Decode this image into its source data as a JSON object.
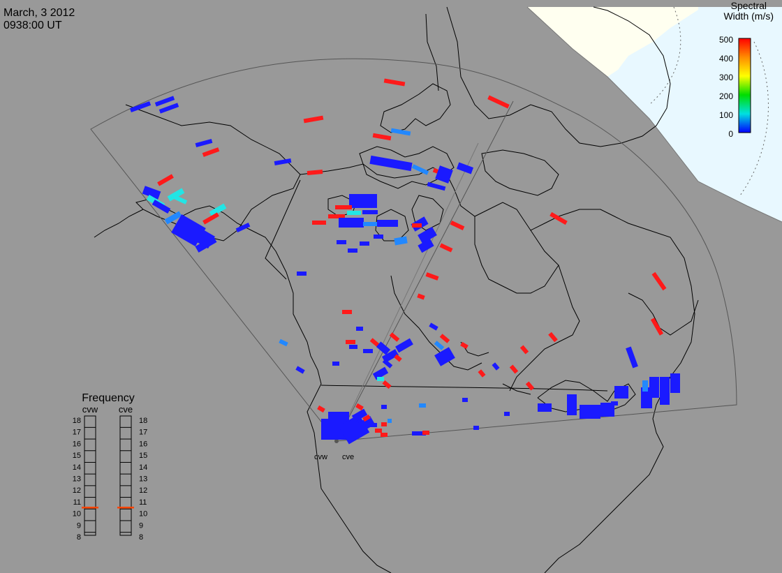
{
  "header": {
    "date": "March, 3 2012",
    "time": "0938:00 UT"
  },
  "colorbar": {
    "title_line1": "Spectral",
    "title_line2": "Width (m/s)",
    "ticks": [
      "500",
      "400",
      "300",
      "200",
      "100",
      "0"
    ],
    "colors": [
      "#ff0000",
      "#ff8c00",
      "#ffff00",
      "#00dd00",
      "#00e0e0",
      "#0000ff"
    ]
  },
  "radars": {
    "west": "cvw",
    "east": "cve"
  },
  "frequency_panel": {
    "title": "Frequency",
    "columns": [
      "cvw",
      "cve"
    ],
    "ticks": [
      "18",
      "17",
      "16",
      "15",
      "14",
      "13",
      "12",
      "11",
      "10",
      "9",
      "8"
    ],
    "cvw_value": 10.5,
    "cve_value": 10.5,
    "marker_color": "#ff4400"
  },
  "colors": {
    "background": "#999999",
    "day_region": "#fffff0",
    "polar_region": "#e8f8ff",
    "coastline": "#000000",
    "fov_outline": "#555555"
  }
}
